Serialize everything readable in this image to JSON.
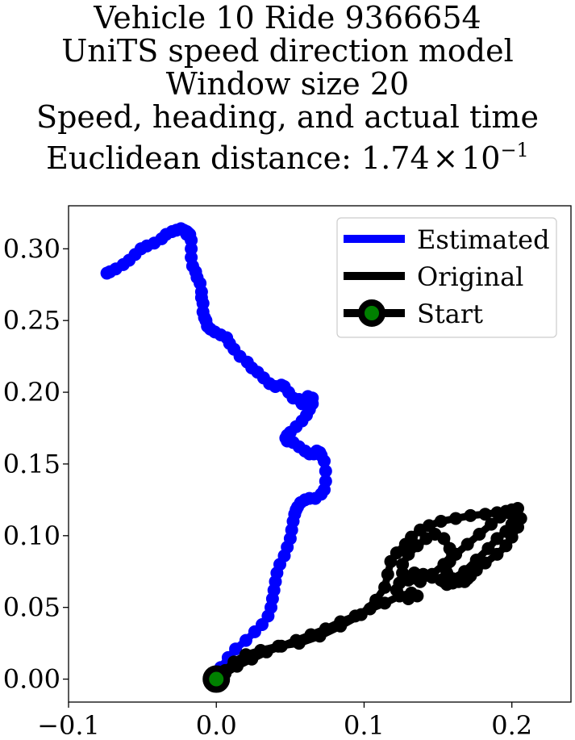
{
  "title_lines": [
    "Vehicle 10 Ride 9366654",
    "UniTS speed direction model",
    "Window size 20",
    "Speed, heading, and actual time"
  ],
  "title_distance": {
    "prefix": "Euclidean distance: 1.74",
    "times": "×",
    "base": "10",
    "exponent": "−1"
  },
  "colors": {
    "estimated": "#0000ff",
    "original": "#000000",
    "start_marker_face": "#008000",
    "start_marker_edge": "#000000",
    "axes": "#000000",
    "background": "#ffffff"
  },
  "chart_data": {
    "type": "line",
    "title": "Vehicle 10 Ride 9366654 UniTS speed direction model Window size 20 Speed, heading, and actual time Euclidean distance: 1.74 × 10^-1",
    "xlabel": "",
    "ylabel": "",
    "xlim": [
      -0.1,
      0.24
    ],
    "ylim": [
      -0.016,
      0.33
    ],
    "xticks": [
      -0.1,
      0.0,
      0.1,
      0.2
    ],
    "xtick_labels": [
      "−0.1",
      "0.0",
      "0.1",
      "0.2"
    ],
    "yticks": [
      0.0,
      0.05,
      0.1,
      0.15,
      0.2,
      0.25,
      0.3
    ],
    "ytick_labels": [
      "0.00",
      "0.05",
      "0.10",
      "0.15",
      "0.20",
      "0.25",
      "0.30"
    ],
    "grid": false,
    "legend_position": "top-right",
    "series": [
      {
        "name": "Estimated",
        "color": "#0000ff",
        "marker": "o",
        "x": [
          0.0,
          0.003,
          0.008,
          0.013,
          0.02,
          0.026,
          0.031,
          0.035,
          0.037,
          0.038,
          0.039,
          0.04,
          0.041,
          0.043,
          0.046,
          0.048,
          0.05,
          0.051,
          0.052,
          0.053,
          0.054,
          0.055,
          0.057,
          0.06,
          0.063,
          0.067,
          0.071,
          0.073,
          0.074,
          0.074,
          0.073,
          0.071,
          0.07,
          0.068,
          0.066,
          0.063,
          0.06,
          0.056,
          0.052,
          0.048,
          0.047,
          0.048,
          0.05,
          0.054,
          0.058,
          0.061,
          0.063,
          0.065,
          0.065,
          0.062,
          0.06,
          0.058,
          0.056,
          0.052,
          0.049,
          0.046,
          0.044,
          0.04,
          0.036,
          0.032,
          0.028,
          0.024,
          0.021,
          0.016,
          0.012,
          0.009,
          0.007,
          0.003,
          -0.001,
          -0.004,
          -0.006,
          -0.007,
          -0.008,
          -0.009,
          -0.009,
          -0.01,
          -0.01,
          -0.011,
          -0.013,
          -0.014,
          -0.016,
          -0.017,
          -0.017,
          -0.017,
          -0.018,
          -0.019,
          -0.02,
          -0.02,
          -0.021,
          -0.022,
          -0.024,
          -0.027,
          -0.03,
          -0.034,
          -0.037,
          -0.042,
          -0.047,
          -0.051,
          -0.055,
          -0.059,
          -0.063,
          -0.068,
          -0.072,
          -0.074
        ],
        "y": [
          0.0,
          0.008,
          0.015,
          0.021,
          0.027,
          0.033,
          0.038,
          0.044,
          0.05,
          0.056,
          0.062,
          0.068,
          0.074,
          0.08,
          0.086,
          0.092,
          0.098,
          0.104,
          0.11,
          0.115,
          0.118,
          0.12,
          0.123,
          0.125,
          0.126,
          0.126,
          0.129,
          0.132,
          0.138,
          0.145,
          0.152,
          0.156,
          0.158,
          0.159,
          0.157,
          0.157,
          0.159,
          0.162,
          0.165,
          0.166,
          0.168,
          0.17,
          0.172,
          0.176,
          0.18,
          0.184,
          0.188,
          0.192,
          0.196,
          0.197,
          0.193,
          0.192,
          0.195,
          0.196,
          0.2,
          0.204,
          0.205,
          0.204,
          0.206,
          0.21,
          0.214,
          0.217,
          0.221,
          0.225,
          0.23,
          0.234,
          0.238,
          0.24,
          0.242,
          0.244,
          0.246,
          0.25,
          0.252,
          0.256,
          0.262,
          0.266,
          0.27,
          0.276,
          0.28,
          0.284,
          0.288,
          0.294,
          0.3,
          0.306,
          0.31,
          0.311,
          0.312,
          0.31,
          0.312,
          0.313,
          0.314,
          0.313,
          0.312,
          0.31,
          0.307,
          0.304,
          0.302,
          0.3,
          0.296,
          0.292,
          0.289,
          0.286,
          0.284,
          0.283
        ]
      },
      {
        "name": "Original",
        "color": "#000000",
        "marker": "o",
        "x": [
          0.0,
          0.006,
          0.012,
          0.02,
          0.03,
          0.042,
          0.056,
          0.07,
          0.084,
          0.098,
          0.108,
          0.114,
          0.116,
          0.118,
          0.122,
          0.128,
          0.132,
          0.138,
          0.144,
          0.152,
          0.162,
          0.172,
          0.182,
          0.19,
          0.196,
          0.2,
          0.202,
          0.2,
          0.196,
          0.19,
          0.184,
          0.176,
          0.168,
          0.16,
          0.156,
          0.154,
          0.156,
          0.158,
          0.158,
          0.154,
          0.148,
          0.142,
          0.136,
          0.13,
          0.126,
          0.126,
          0.13,
          0.138,
          0.146,
          0.154,
          0.162,
          0.17,
          0.178,
          0.186,
          0.192,
          0.198,
          0.204,
          0.206,
          0.204,
          0.2,
          0.196,
          0.19,
          0.182,
          0.176,
          0.172,
          0.17,
          0.168,
          0.164,
          0.16,
          0.156,
          0.152,
          0.146,
          0.14,
          0.134,
          0.128,
          0.124,
          0.122,
          0.124,
          0.13,
          0.136,
          0.132,
          0.124,
          0.114,
          0.104,
          0.094,
          0.084,
          0.074,
          0.064,
          0.054,
          0.044,
          0.034,
          0.024,
          0.014,
          0.006,
          0.0
        ],
        "y": [
          0.0,
          0.006,
          0.012,
          0.017,
          0.02,
          0.023,
          0.025,
          0.03,
          0.037,
          0.045,
          0.055,
          0.064,
          0.073,
          0.082,
          0.088,
          0.094,
          0.099,
          0.104,
          0.107,
          0.11,
          0.112,
          0.114,
          0.115,
          0.116,
          0.117,
          0.118,
          0.114,
          0.108,
          0.103,
          0.098,
          0.091,
          0.083,
          0.075,
          0.07,
          0.066,
          0.068,
          0.074,
          0.082,
          0.091,
          0.098,
          0.101,
          0.098,
          0.093,
          0.087,
          0.08,
          0.074,
          0.069,
          0.068,
          0.073,
          0.08,
          0.087,
          0.094,
          0.101,
          0.108,
          0.113,
          0.116,
          0.119,
          0.112,
          0.106,
          0.099,
          0.093,
          0.087,
          0.081,
          0.076,
          0.072,
          0.07,
          0.068,
          0.068,
          0.067,
          0.068,
          0.069,
          0.071,
          0.073,
          0.074,
          0.072,
          0.067,
          0.062,
          0.058,
          0.056,
          0.058,
          0.06,
          0.058,
          0.053,
          0.049,
          0.044,
          0.04,
          0.035,
          0.031,
          0.027,
          0.023,
          0.019,
          0.014,
          0.009,
          0.004,
          0.0
        ]
      }
    ],
    "start_point": {
      "name": "Start",
      "x": 0.0,
      "y": 0.0
    }
  }
}
